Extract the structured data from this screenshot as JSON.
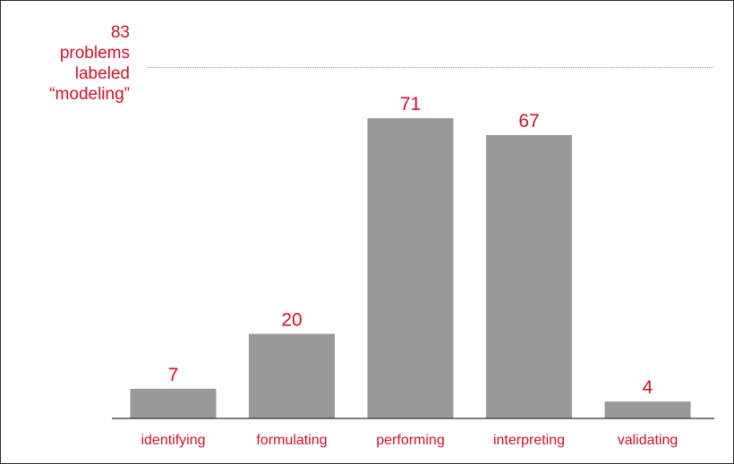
{
  "chart_data": {
    "type": "bar",
    "categories": [
      "identifying",
      "formulating",
      "performing",
      "interpreting",
      "validating"
    ],
    "values": [
      7,
      20,
      71,
      67,
      4
    ],
    "reference_line": {
      "value": 83,
      "label_lines": [
        "83",
        "problems",
        "labeled",
        "“modeling”"
      ]
    },
    "ylim": [
      0,
      85
    ],
    "grid": false,
    "colors": {
      "bar": "#999999",
      "axis": "#333333",
      "text": "#d0102a",
      "reference": "#888888"
    }
  }
}
